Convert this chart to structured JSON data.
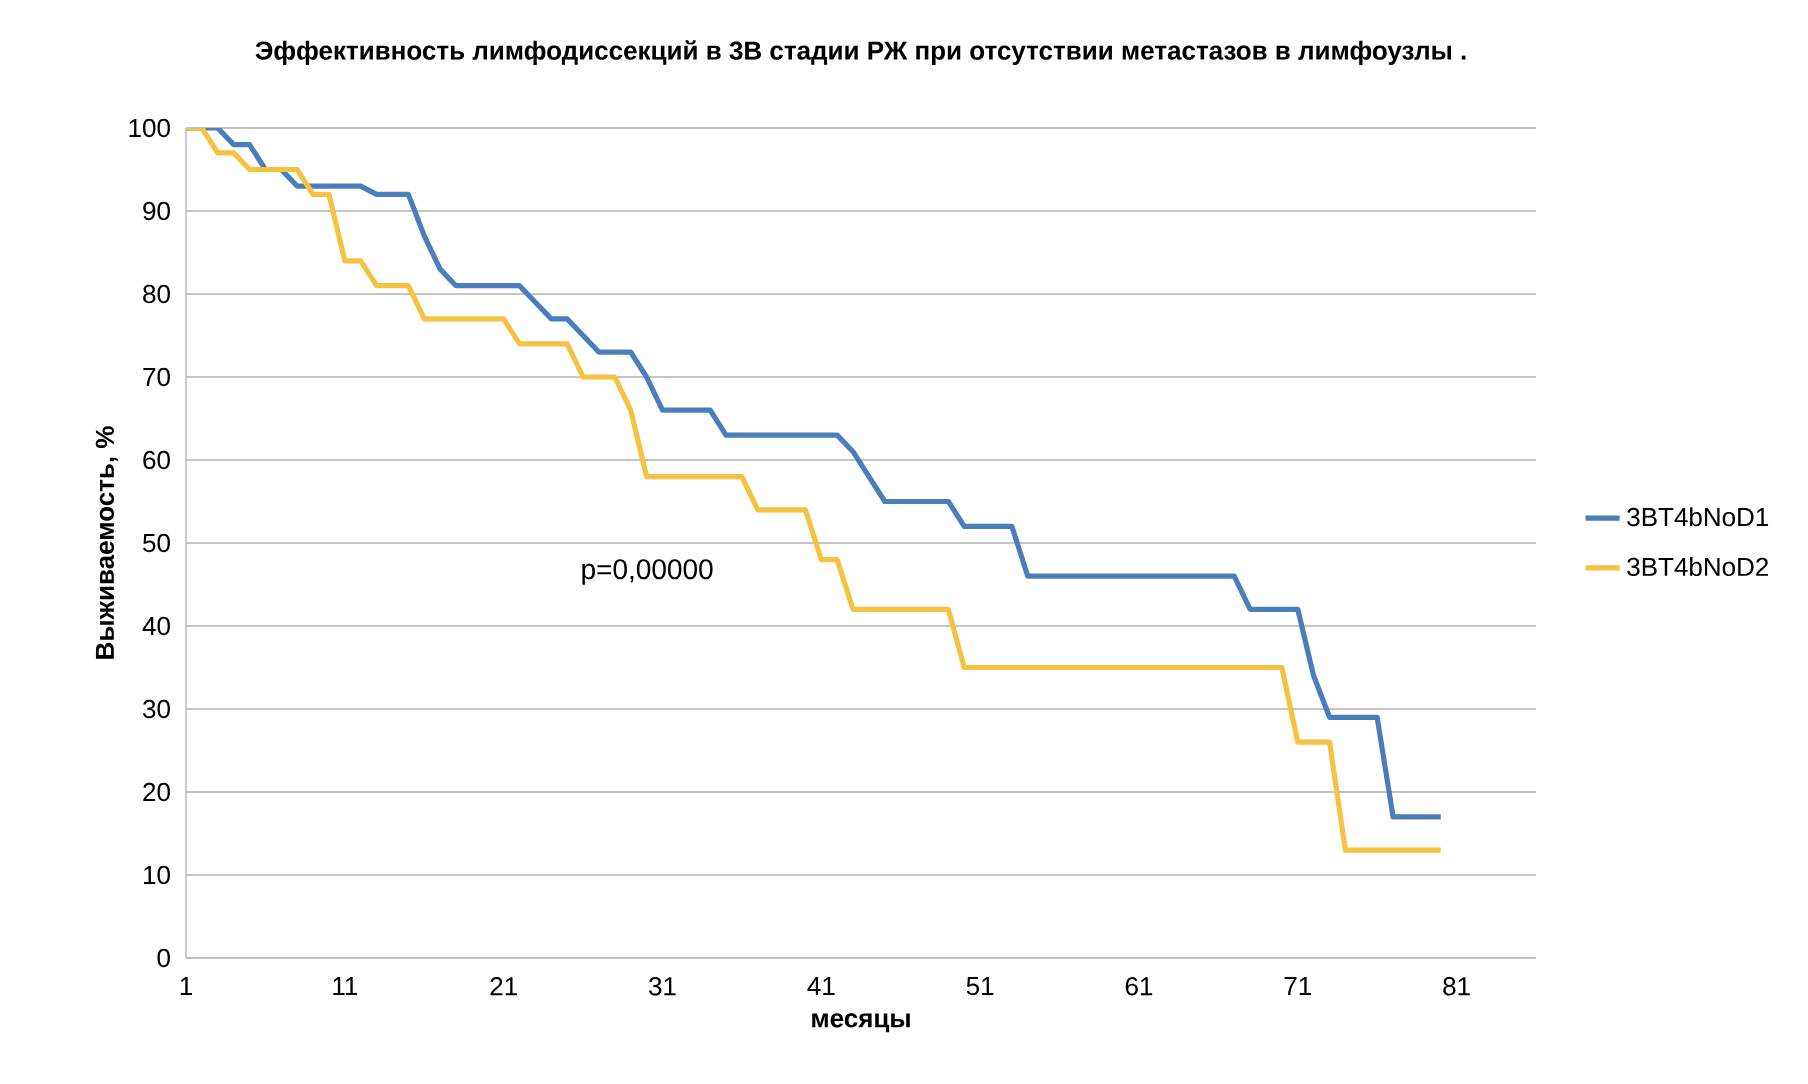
{
  "chart_data": {
    "type": "line",
    "title": "Эффективность лимфодиссекций в 3В стадии РЖ при отсутствии метастазов в лимфоузлы .",
    "xlabel": "месяцы",
    "ylabel": "Выживаемость, %",
    "annotations": [
      "p=0,00000"
    ],
    "xlim": [
      1,
      86
    ],
    "xticks": [
      1,
      11,
      21,
      31,
      41,
      51,
      61,
      71,
      81
    ],
    "ylim": [
      0,
      100
    ],
    "yticks": [
      0,
      10,
      20,
      30,
      40,
      50,
      60,
      70,
      80,
      90,
      100
    ],
    "grid": "y",
    "legend": "right",
    "marker": "none",
    "line_style": "solid",
    "series": [
      {
        "name": "3BT4bNoD1",
        "color": "#4a7ebb",
        "x": [
          1,
          3,
          4,
          5,
          6,
          7,
          8,
          9,
          12,
          13,
          15,
          16,
          17,
          18,
          22,
          23,
          24,
          25,
          26,
          27,
          29,
          30,
          31,
          34,
          35,
          42,
          43,
          44,
          45,
          49,
          50,
          53,
          54,
          67,
          68,
          71,
          72,
          73,
          76,
          77,
          80
        ],
        "values": [
          100,
          100,
          98,
          98,
          95,
          95,
          93,
          93,
          93,
          92,
          92,
          87,
          83,
          81,
          81,
          79,
          77,
          77,
          75,
          73,
          73,
          70,
          66,
          66,
          63,
          63,
          61,
          58,
          55,
          55,
          52,
          52,
          46,
          46,
          42,
          42,
          34,
          29,
          29,
          17,
          17
        ]
      },
      {
        "name": "3BT4bNoD2",
        "color": "#f5c242",
        "x": [
          1,
          2,
          3,
          4,
          5,
          8,
          9,
          10,
          11,
          12,
          13,
          15,
          16,
          21,
          22,
          25,
          26,
          28,
          29,
          30,
          36,
          37,
          40,
          41,
          42,
          43,
          49,
          50,
          70,
          71,
          73,
          74,
          80
        ],
        "values": [
          100,
          100,
          97,
          97,
          95,
          95,
          92,
          92,
          84,
          84,
          81,
          81,
          77,
          77,
          74,
          74,
          70,
          70,
          66,
          58,
          58,
          54,
          54,
          48,
          48,
          42,
          42,
          35,
          35,
          26,
          26,
          13,
          13
        ]
      }
    ]
  }
}
